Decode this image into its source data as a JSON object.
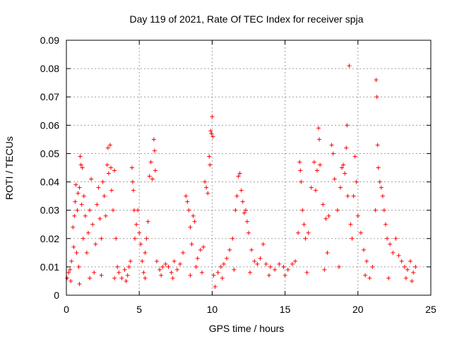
{
  "chart_data": {
    "type": "scatter",
    "title": "Day 119 of 2021, Rate Of TEC Index for receiver spja",
    "xlabel": "GPS time / hours",
    "ylabel": "ROTI / TECUs",
    "xlim": [
      0,
      25
    ],
    "ylim": [
      0,
      0.09
    ],
    "x_ticks": [
      0,
      5,
      10,
      15,
      20,
      25
    ],
    "x_tick_labels": [
      "0",
      "5",
      "10",
      "15",
      "20",
      "25"
    ],
    "y_ticks": [
      0,
      0.01,
      0.02,
      0.03,
      0.04,
      0.05,
      0.06,
      0.07,
      0.08,
      0.09
    ],
    "y_tick_labels": [
      "0",
      "0.01",
      "0.02",
      "0.03",
      "0.04",
      "0.05",
      "0.06",
      "0.07",
      "0.08",
      "0.09"
    ],
    "grid": true,
    "marker": "+",
    "marker_color": "#ff0000",
    "series": [
      {
        "name": "ROTI",
        "points": [
          [
            0.05,
            0.006
          ],
          [
            0.15,
            0.008
          ],
          [
            0.25,
            0.009
          ],
          [
            0.35,
            0.012
          ],
          [
            0.45,
            0.024
          ],
          [
            0.5,
            0.017
          ],
          [
            0.55,
            0.028
          ],
          [
            0.6,
            0.033
          ],
          [
            0.65,
            0.039
          ],
          [
            0.7,
            0.015
          ],
          [
            0.75,
            0.03
          ],
          [
            0.8,
            0.036
          ],
          [
            0.85,
            0.01
          ],
          [
            0.9,
            0.038
          ],
          [
            0.95,
            0.049
          ],
          [
            1.0,
            0.046
          ],
          [
            1.05,
            0.032
          ],
          [
            1.1,
            0.045
          ],
          [
            1.15,
            0.02
          ],
          [
            1.2,
            0.035
          ],
          [
            1.3,
            0.028
          ],
          [
            1.4,
            0.015
          ],
          [
            1.5,
            0.022
          ],
          [
            1.6,
            0.03
          ],
          [
            1.7,
            0.041
          ],
          [
            1.8,
            0.025
          ],
          [
            1.9,
            0.008
          ],
          [
            2.0,
            0.018
          ],
          [
            2.1,
            0.032
          ],
          [
            2.2,
            0.038
          ],
          [
            2.3,
            0.027
          ],
          [
            2.4,
            0.02
          ],
          [
            2.5,
            0.04
          ],
          [
            2.6,
            0.035
          ],
          [
            2.7,
            0.028
          ],
          [
            2.8,
            0.046
          ],
          [
            2.85,
            0.052
          ],
          [
            2.9,
            0.043
          ],
          [
            3.0,
            0.053
          ],
          [
            3.05,
            0.045
          ],
          [
            3.1,
            0.037
          ],
          [
            3.2,
            0.03
          ],
          [
            3.3,
            0.044
          ],
          [
            3.4,
            0.02
          ],
          [
            3.5,
            0.01
          ],
          [
            3.6,
            0.008
          ],
          [
            3.8,
            0.006
          ],
          [
            4.0,
            0.009
          ],
          [
            4.2,
            0.007
          ],
          [
            4.3,
            0.01
          ],
          [
            4.4,
            0.012
          ],
          [
            4.5,
            0.045
          ],
          [
            4.55,
            0.04
          ],
          [
            4.6,
            0.037
          ],
          [
            4.65,
            0.03
          ],
          [
            4.7,
            0.02
          ],
          [
            4.8,
            0.025
          ],
          [
            4.9,
            0.03
          ],
          [
            5.0,
            0.022
          ],
          [
            5.1,
            0.018
          ],
          [
            5.2,
            0.012
          ],
          [
            5.3,
            0.008
          ],
          [
            5.4,
            0.015
          ],
          [
            5.5,
            0.02
          ],
          [
            5.6,
            0.026
          ],
          [
            5.7,
            0.042
          ],
          [
            5.8,
            0.047
          ],
          [
            5.9,
            0.041
          ],
          [
            6.0,
            0.055
          ],
          [
            6.05,
            0.051
          ],
          [
            6.1,
            0.044
          ],
          [
            6.2,
            0.012
          ],
          [
            6.4,
            0.009
          ],
          [
            6.6,
            0.01
          ],
          [
            6.8,
            0.011
          ],
          [
            7.0,
            0.01
          ],
          [
            7.2,
            0.008
          ],
          [
            7.4,
            0.012
          ],
          [
            7.6,
            0.009
          ],
          [
            7.8,
            0.011
          ],
          [
            8.0,
            0.015
          ],
          [
            8.2,
            0.035
          ],
          [
            8.3,
            0.033
          ],
          [
            8.4,
            0.03
          ],
          [
            8.5,
            0.024
          ],
          [
            8.6,
            0.018
          ],
          [
            8.7,
            0.028
          ],
          [
            8.8,
            0.026
          ],
          [
            8.9,
            0.01
          ],
          [
            9.0,
            0.013
          ],
          [
            9.2,
            0.016
          ],
          [
            9.4,
            0.017
          ],
          [
            9.5,
            0.04
          ],
          [
            9.6,
            0.038
          ],
          [
            9.7,
            0.036
          ],
          [
            9.8,
            0.049
          ],
          [
            9.85,
            0.046
          ],
          [
            9.9,
            0.058
          ],
          [
            9.95,
            0.057
          ],
          [
            10.0,
            0.063
          ],
          [
            10.05,
            0.056
          ],
          [
            10.1,
            0.007
          ],
          [
            10.2,
            0.003
          ],
          [
            10.4,
            0.008
          ],
          [
            10.6,
            0.01
          ],
          [
            10.8,
            0.011
          ],
          [
            11.0,
            0.013
          ],
          [
            11.2,
            0.016
          ],
          [
            11.4,
            0.02
          ],
          [
            11.6,
            0.03
          ],
          [
            11.7,
            0.035
          ],
          [
            11.8,
            0.042
          ],
          [
            11.9,
            0.043
          ],
          [
            12.0,
            0.037
          ],
          [
            12.1,
            0.033
          ],
          [
            12.2,
            0.029
          ],
          [
            12.3,
            0.03
          ],
          [
            12.4,
            0.026
          ],
          [
            12.5,
            0.022
          ],
          [
            12.7,
            0.016
          ],
          [
            12.9,
            0.012
          ],
          [
            13.1,
            0.011
          ],
          [
            13.3,
            0.013
          ],
          [
            13.5,
            0.018
          ],
          [
            13.7,
            0.011
          ],
          [
            14.0,
            0.01
          ],
          [
            14.3,
            0.009
          ],
          [
            14.6,
            0.011
          ],
          [
            14.9,
            0.01
          ],
          [
            15.2,
            0.009
          ],
          [
            15.5,
            0.011
          ],
          [
            15.7,
            0.012
          ],
          [
            15.9,
            0.022
          ],
          [
            16.0,
            0.047
          ],
          [
            16.05,
            0.044
          ],
          [
            16.1,
            0.04
          ],
          [
            16.2,
            0.03
          ],
          [
            16.3,
            0.025
          ],
          [
            16.4,
            0.02
          ],
          [
            16.6,
            0.022
          ],
          [
            16.8,
            0.038
          ],
          [
            17.0,
            0.047
          ],
          [
            17.1,
            0.037
          ],
          [
            17.2,
            0.044
          ],
          [
            17.3,
            0.059
          ],
          [
            17.35,
            0.055
          ],
          [
            17.4,
            0.046
          ],
          [
            17.6,
            0.032
          ],
          [
            17.8,
            0.027
          ],
          [
            17.9,
            0.015
          ],
          [
            18.0,
            0.028
          ],
          [
            18.2,
            0.053
          ],
          [
            18.3,
            0.05
          ],
          [
            18.4,
            0.041
          ],
          [
            18.6,
            0.03
          ],
          [
            18.8,
            0.038
          ],
          [
            18.9,
            0.045
          ],
          [
            19.0,
            0.046
          ],
          [
            19.1,
            0.043
          ],
          [
            19.2,
            0.052
          ],
          [
            19.25,
            0.06
          ],
          [
            19.3,
            0.035
          ],
          [
            19.4,
            0.081
          ],
          [
            19.5,
            0.025
          ],
          [
            19.6,
            0.02
          ],
          [
            19.7,
            0.035
          ],
          [
            19.8,
            0.049
          ],
          [
            19.9,
            0.04
          ],
          [
            20.0,
            0.028
          ],
          [
            20.2,
            0.022
          ],
          [
            20.4,
            0.016
          ],
          [
            20.6,
            0.012
          ],
          [
            20.8,
            0.006
          ],
          [
            21.0,
            0.01
          ],
          [
            21.2,
            0.03
          ],
          [
            21.25,
            0.076
          ],
          [
            21.3,
            0.07
          ],
          [
            21.35,
            0.053
          ],
          [
            21.4,
            0.045
          ],
          [
            21.5,
            0.04
          ],
          [
            21.6,
            0.038
          ],
          [
            21.7,
            0.035
          ],
          [
            21.8,
            0.03
          ],
          [
            21.9,
            0.025
          ],
          [
            22.0,
            0.02
          ],
          [
            22.2,
            0.018
          ],
          [
            22.4,
            0.015
          ],
          [
            22.6,
            0.02
          ],
          [
            22.8,
            0.014
          ],
          [
            23.0,
            0.012
          ],
          [
            23.2,
            0.01
          ],
          [
            23.4,
            0.009
          ],
          [
            23.6,
            0.012
          ],
          [
            23.8,
            0.008
          ],
          [
            23.95,
            0.01
          ],
          [
            0.3,
            0.005
          ],
          [
            0.9,
            0.004
          ],
          [
            1.6,
            0.006
          ],
          [
            2.4,
            0.007
          ],
          [
            3.3,
            0.006
          ],
          [
            4.1,
            0.005
          ],
          [
            5.4,
            0.006
          ],
          [
            6.5,
            0.007
          ],
          [
            7.3,
            0.006
          ],
          [
            8.5,
            0.007
          ],
          [
            9.3,
            0.008
          ],
          [
            10.7,
            0.006
          ],
          [
            11.5,
            0.009
          ],
          [
            12.6,
            0.008
          ],
          [
            13.9,
            0.007
          ],
          [
            15.0,
            0.007
          ],
          [
            16.5,
            0.008
          ],
          [
            17.7,
            0.009
          ],
          [
            18.7,
            0.01
          ],
          [
            20.5,
            0.007
          ],
          [
            22.1,
            0.006
          ],
          [
            23.3,
            0.006
          ],
          [
            23.7,
            0.005
          ]
        ]
      }
    ]
  }
}
